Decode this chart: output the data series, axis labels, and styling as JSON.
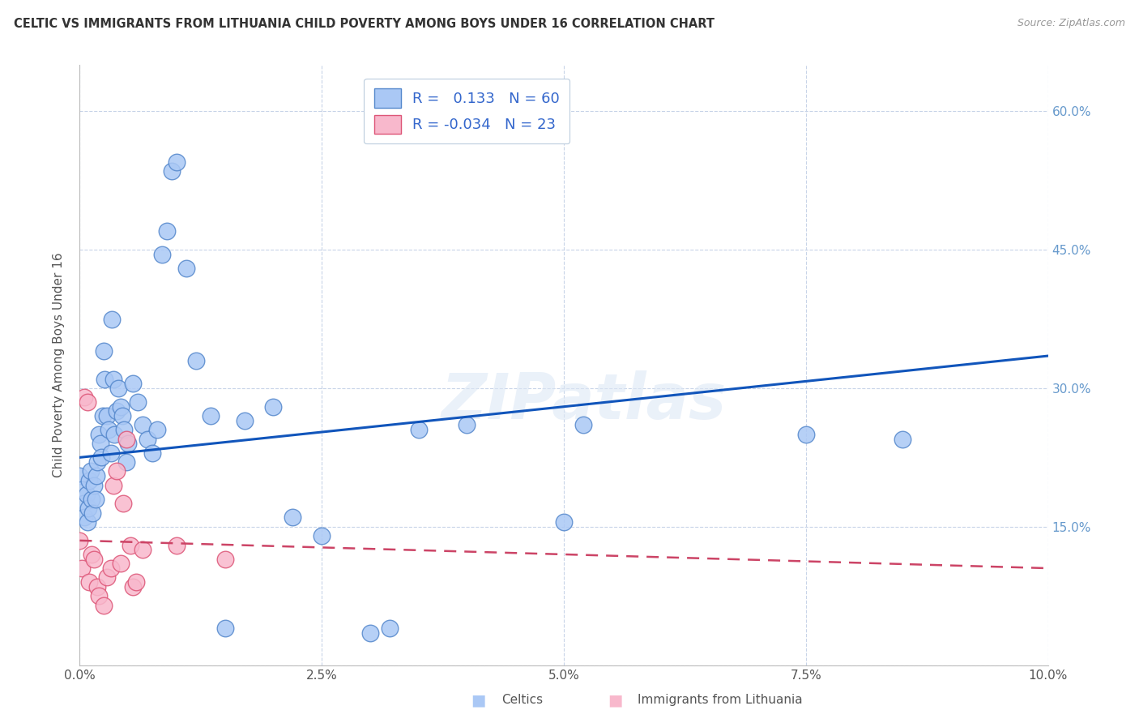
{
  "title": "CELTIC VS IMMIGRANTS FROM LITHUANIA CHILD POVERTY AMONG BOYS UNDER 16 CORRELATION CHART",
  "source": "Source: ZipAtlas.com",
  "ylabel": "Child Poverty Among Boys Under 16",
  "celtics_R": 0.133,
  "celtics_N": 60,
  "lithuania_R": -0.034,
  "lithuania_N": 23,
  "celtics_color": "#aac8f5",
  "celtics_edge_color": "#5588cc",
  "lithuania_color": "#f8b8cc",
  "lithuania_edge_color": "#dd5577",
  "trend_celtics_color": "#1155bb",
  "trend_lithuania_color": "#cc4466",
  "background_color": "#ffffff",
  "grid_color": "#c8d4e8",
  "watermark": "ZIPatlas",
  "right_tick_color": "#6699cc",
  "celtics_x": [
    0.0,
    0.02,
    0.04,
    0.05,
    0.07,
    0.08,
    0.09,
    0.1,
    0.11,
    0.12,
    0.13,
    0.15,
    0.16,
    0.17,
    0.18,
    0.2,
    0.21,
    0.22,
    0.24,
    0.25,
    0.26,
    0.28,
    0.3,
    0.32,
    0.33,
    0.35,
    0.36,
    0.38,
    0.4,
    0.42,
    0.44,
    0.46,
    0.48,
    0.5,
    0.55,
    0.6,
    0.65,
    0.7,
    0.75,
    0.8,
    0.85,
    0.9,
    0.95,
    1.0,
    1.1,
    1.2,
    1.35,
    1.5,
    1.7,
    2.0,
    2.2,
    2.5,
    3.0,
    3.2,
    3.5,
    4.0,
    5.0,
    5.2,
    7.5,
    8.5
  ],
  "celtics_y": [
    20.5,
    19.0,
    17.5,
    16.0,
    18.5,
    15.5,
    17.0,
    20.0,
    21.0,
    18.0,
    16.5,
    19.5,
    18.0,
    20.5,
    22.0,
    25.0,
    24.0,
    22.5,
    27.0,
    34.0,
    31.0,
    27.0,
    25.5,
    23.0,
    37.5,
    31.0,
    25.0,
    27.5,
    30.0,
    28.0,
    27.0,
    25.5,
    22.0,
    24.0,
    30.5,
    28.5,
    26.0,
    24.5,
    23.0,
    25.5,
    44.5,
    47.0,
    53.5,
    54.5,
    43.0,
    33.0,
    27.0,
    4.0,
    26.5,
    28.0,
    16.0,
    14.0,
    3.5,
    4.0,
    25.5,
    26.0,
    15.5,
    26.0,
    25.0,
    24.5
  ],
  "lithuania_x": [
    0.0,
    0.02,
    0.05,
    0.08,
    0.1,
    0.12,
    0.15,
    0.18,
    0.2,
    0.25,
    0.28,
    0.32,
    0.35,
    0.38,
    0.42,
    0.45,
    0.48,
    0.52,
    0.55,
    0.58,
    0.65,
    1.0,
    1.5
  ],
  "lithuania_y": [
    13.5,
    10.5,
    29.0,
    28.5,
    9.0,
    12.0,
    11.5,
    8.5,
    7.5,
    6.5,
    9.5,
    10.5,
    19.5,
    21.0,
    11.0,
    17.5,
    24.5,
    13.0,
    8.5,
    9.0,
    12.5,
    13.0,
    11.5
  ],
  "trend_celtics_x0": 0.0,
  "trend_celtics_x1": 10.0,
  "trend_celtics_y0": 22.5,
  "trend_celtics_y1": 33.5,
  "trend_lith_x0": 0.0,
  "trend_lith_x1": 10.0,
  "trend_lith_y0": 13.5,
  "trend_lith_y1": 10.5,
  "xmin": 0.0,
  "xmax": 10.0,
  "ymin": 0.0,
  "ymax": 65.0,
  "x_tick_vals": [
    0.0,
    2.5,
    5.0,
    7.5,
    10.0
  ],
  "x_tick_labels": [
    "0.0%",
    "2.5%",
    "5.0%",
    "7.5%",
    "10.0%"
  ],
  "y_tick_vals": [
    0,
    15,
    30,
    45,
    60
  ],
  "y_right_labels": [
    "",
    "15.0%",
    "30.0%",
    "45.0%",
    "60.0%"
  ]
}
